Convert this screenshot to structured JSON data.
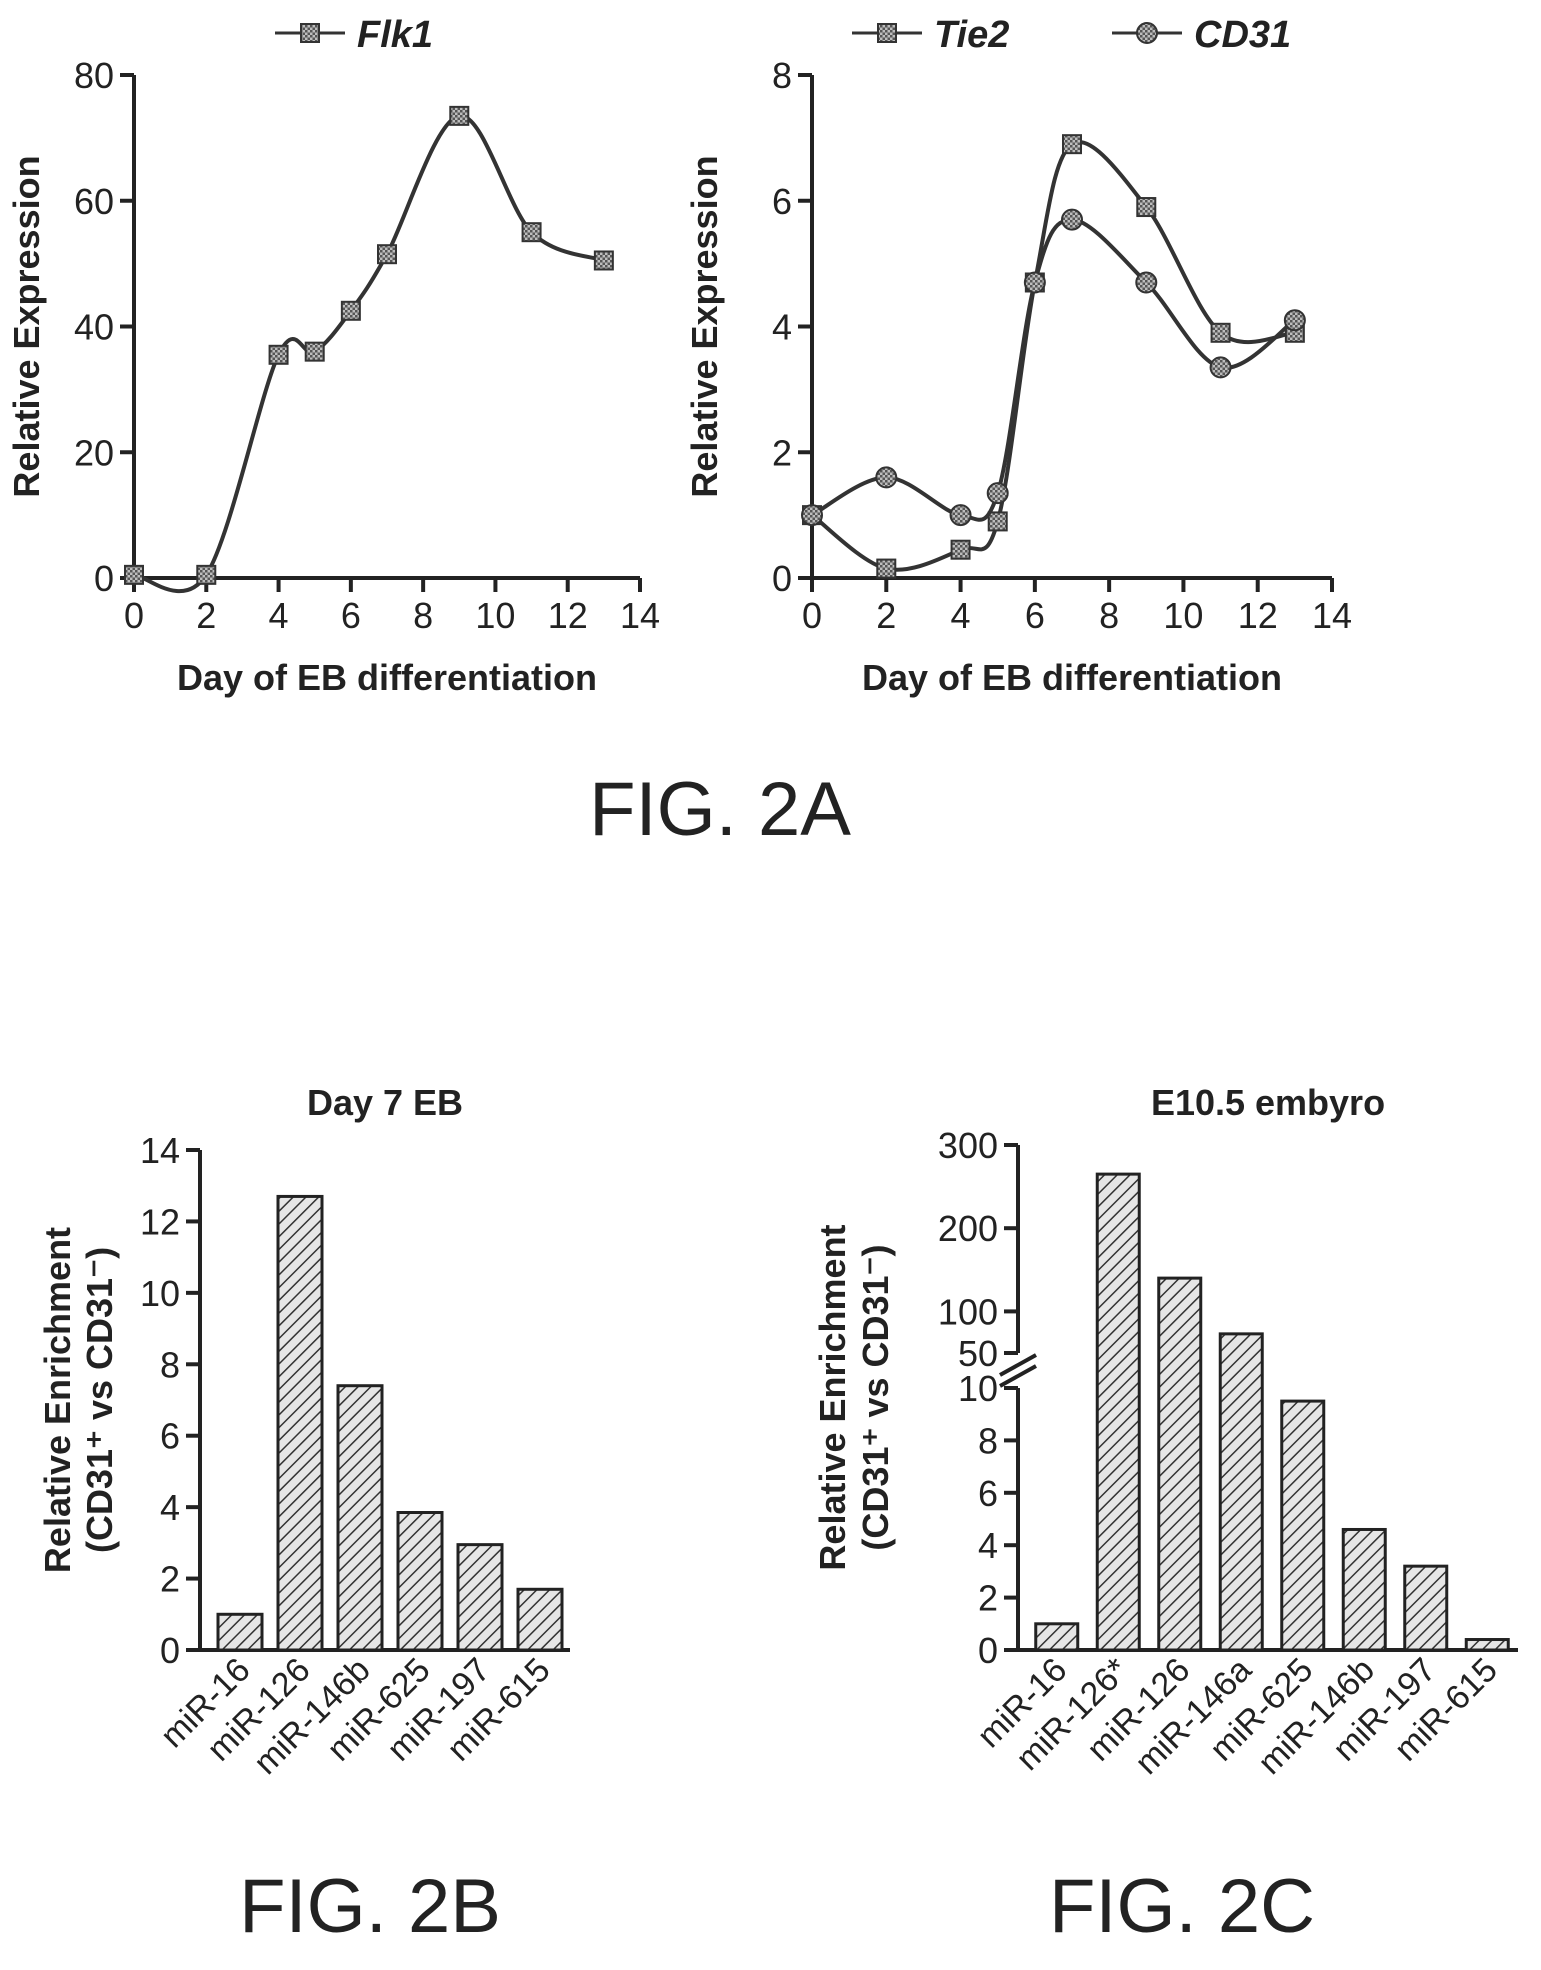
{
  "figures": {
    "fig2a": "FIG. 2A",
    "fig2b": "FIG. 2B",
    "fig2c": "FIG. 2C"
  },
  "chart_data": [
    {
      "id": "flk1",
      "type": "line",
      "xlabel": "Day of EB differentiation",
      "ylabel": "Relative Expression",
      "xlim": [
        0,
        14
      ],
      "ylim": [
        0,
        80
      ],
      "xticks": [
        0,
        2,
        4,
        6,
        8,
        10,
        12,
        14
      ],
      "yticks": [
        0,
        20,
        40,
        60,
        80
      ],
      "legend_position": "top",
      "series": [
        {
          "name": "Flk1",
          "marker": "square",
          "x": [
            0,
            2,
            4,
            5,
            6,
            7,
            9,
            11,
            13
          ],
          "y": [
            0.5,
            0.5,
            35.5,
            36,
            42.5,
            51.5,
            73.5,
            55,
            50.5
          ]
        }
      ]
    },
    {
      "id": "tie2cd31",
      "type": "line",
      "xlabel": "Day of EB differentiation",
      "ylabel": "Relative Expression",
      "xlim": [
        0,
        14
      ],
      "ylim": [
        0,
        8
      ],
      "xticks": [
        0,
        2,
        4,
        6,
        8,
        10,
        12,
        14
      ],
      "yticks": [
        0,
        2,
        4,
        6,
        8
      ],
      "legend_position": "top",
      "series": [
        {
          "name": "Tie2",
          "marker": "square",
          "x": [
            0,
            2,
            4,
            5,
            6,
            7,
            9,
            11,
            13
          ],
          "y": [
            1,
            0.15,
            0.45,
            0.9,
            4.7,
            6.9,
            5.9,
            3.9,
            3.9
          ]
        },
        {
          "name": "CD31",
          "marker": "circle",
          "x": [
            0,
            2,
            4,
            5,
            6,
            7,
            9,
            11,
            13
          ],
          "y": [
            1,
            1.6,
            1,
            1.35,
            4.7,
            5.7,
            4.7,
            3.35,
            4.1
          ]
        }
      ]
    },
    {
      "id": "day7",
      "type": "bar",
      "title": "Day 7 EB",
      "ylabel_line1": "Relative Enrichment",
      "ylabel_line2": "(CD31⁺ vs CD31⁻)",
      "ylim": [
        0,
        14
      ],
      "yticks": [
        0,
        2,
        4,
        6,
        8,
        10,
        12,
        14
      ],
      "categories": [
        "miR-16",
        "miR-126",
        "miR-146b",
        "miR-625",
        "miR-197",
        "miR-615"
      ],
      "values": [
        1.0,
        12.7,
        7.4,
        3.85,
        2.95,
        1.7
      ]
    },
    {
      "id": "e105",
      "type": "bar",
      "title": "E10.5 embyro",
      "ylabel_line1": "Relative Enrichment",
      "ylabel_line2": "(CD31⁺ vs CD31⁻)",
      "axis_break": true,
      "lower_ylim": [
        0,
        10
      ],
      "upper_ylim": [
        50,
        300
      ],
      "yticks_lower": [
        0,
        2,
        4,
        6,
        8,
        10
      ],
      "yticks_upper": [
        50,
        100,
        200,
        300
      ],
      "categories": [
        "miR-16",
        "miR-126*",
        "miR-126",
        "miR-146a",
        "miR-625",
        "miR-146b",
        "miR-197",
        "miR-615"
      ],
      "values": [
        1.0,
        265,
        140,
        73,
        9.5,
        4.6,
        3.2,
        0.4
      ]
    }
  ]
}
